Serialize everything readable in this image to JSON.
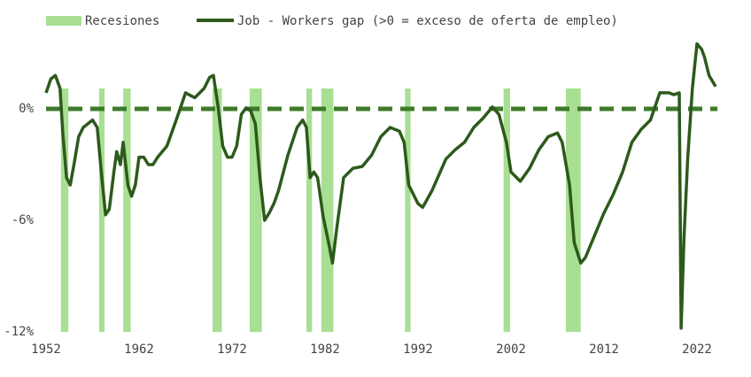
{
  "chart_data": {
    "type": "line",
    "recessions": {
      "name": "Recesiones",
      "color": "#a8df93",
      "ranges": [
        [
          1953.6,
          1954.4
        ],
        [
          1957.7,
          1958.3
        ],
        [
          1960.3,
          1961.1
        ],
        [
          1969.9,
          1970.9
        ],
        [
          1973.9,
          1975.2
        ],
        [
          1980.0,
          1980.6
        ],
        [
          1981.6,
          1982.9
        ],
        [
          1990.6,
          1991.2
        ],
        [
          2001.2,
          2001.9
        ],
        [
          2007.9,
          2009.5
        ]
      ]
    },
    "x": [
      1952.0,
      1952.5,
      1953.0,
      1953.5,
      1953.8,
      1954.2,
      1954.6,
      1955.0,
      1955.5,
      1956.0,
      1956.5,
      1957.0,
      1957.5,
      1958.0,
      1958.4,
      1958.8,
      1959.3,
      1959.6,
      1960.0,
      1960.3,
      1960.8,
      1961.2,
      1961.6,
      1962.0,
      1962.5,
      1963.0,
      1963.5,
      1964.0,
      1965.0,
      1966.0,
      1967.0,
      1968.0,
      1969.0,
      1969.6,
      1970.0,
      1970.5,
      1971.0,
      1971.5,
      1972.0,
      1972.5,
      1973.0,
      1973.5,
      1974.0,
      1974.5,
      1975.0,
      1975.5,
      1976.0,
      1976.5,
      1977.0,
      1978.0,
      1979.0,
      1979.6,
      1980.0,
      1980.4,
      1980.8,
      1981.2,
      1981.8,
      1982.5,
      1982.8,
      1983.3,
      1984.0,
      1985.0,
      1986.0,
      1987.0,
      1988.0,
      1989.0,
      1990.0,
      1990.5,
      1991.0,
      1992.0,
      1992.5,
      1993.5,
      1995.0,
      1996.0,
      1997.0,
      1998.0,
      1999.0,
      2000.0,
      2000.7,
      2001.5,
      2002.0,
      2003.0,
      2004.0,
      2005.0,
      2006.0,
      2007.0,
      2007.5,
      2008.3,
      2008.8,
      2009.5,
      2010.0,
      2011.0,
      2012.0,
      2013.0,
      2014.0,
      2015.0,
      2016.0,
      2017.0,
      2018.0,
      2019.0,
      2019.5,
      2020.1,
      2020.3,
      2020.6,
      2021.0,
      2021.5,
      2022.0,
      2022.5,
      2022.8,
      2023.3,
      2024.0
    ],
    "series": [
      {
        "name": "Job - Workers gap (>0 = exceso de oferta de empleo)",
        "color": "#2d5a1b",
        "values": [
          0.86,
          1.6,
          1.8,
          1.1,
          -1.3,
          -3.7,
          -4.1,
          -3.0,
          -1.5,
          -1.0,
          -0.8,
          -0.6,
          -1.0,
          -3.7,
          -5.7,
          -5.4,
          -3.4,
          -2.3,
          -3.0,
          -1.8,
          -4.1,
          -4.7,
          -4.1,
          -2.6,
          -2.6,
          -3.0,
          -3.0,
          -2.6,
          -2.0,
          -0.6,
          0.86,
          0.6,
          1.1,
          1.7,
          1.8,
          0.1,
          -2.0,
          -2.6,
          -2.6,
          -2.0,
          -0.3,
          0.05,
          -0.1,
          -0.8,
          -3.7,
          -6.0,
          -5.6,
          -5.1,
          -4.4,
          -2.5,
          -1.0,
          -0.6,
          -1.0,
          -3.7,
          -3.4,
          -3.7,
          -5.8,
          -7.5,
          -8.3,
          -6.3,
          -3.7,
          -3.2,
          -3.1,
          -2.5,
          -1.5,
          -1.0,
          -1.2,
          -1.8,
          -4.1,
          -5.1,
          -5.3,
          -4.4,
          -2.7,
          -2.2,
          -1.8,
          -1.0,
          -0.5,
          0.1,
          -0.3,
          -1.8,
          -3.4,
          -3.9,
          -3.2,
          -2.2,
          -1.5,
          -1.3,
          -1.8,
          -4.1,
          -7.2,
          -8.3,
          -8.0,
          -6.8,
          -5.6,
          -4.6,
          -3.4,
          -1.8,
          -1.1,
          -0.6,
          0.86,
          0.86,
          0.76,
          0.86,
          -11.8,
          -7.0,
          -2.7,
          1.1,
          3.5,
          3.2,
          2.8,
          1.8,
          1.2
        ]
      }
    ],
    "xlim": [
      1952,
      2025
    ],
    "xticks": [
      1952,
      1962,
      1972,
      1982,
      1992,
      2002,
      2012,
      2022
    ],
    "ylim": [
      -12,
      4
    ],
    "yticks": [
      {
        "value": 0,
        "label": "0%"
      },
      {
        "value": -6,
        "label": "-6%"
      },
      {
        "value": -12,
        "label": "-12%"
      }
    ],
    "zero_line": true,
    "zero_line_color": "#3e7a2a"
  }
}
